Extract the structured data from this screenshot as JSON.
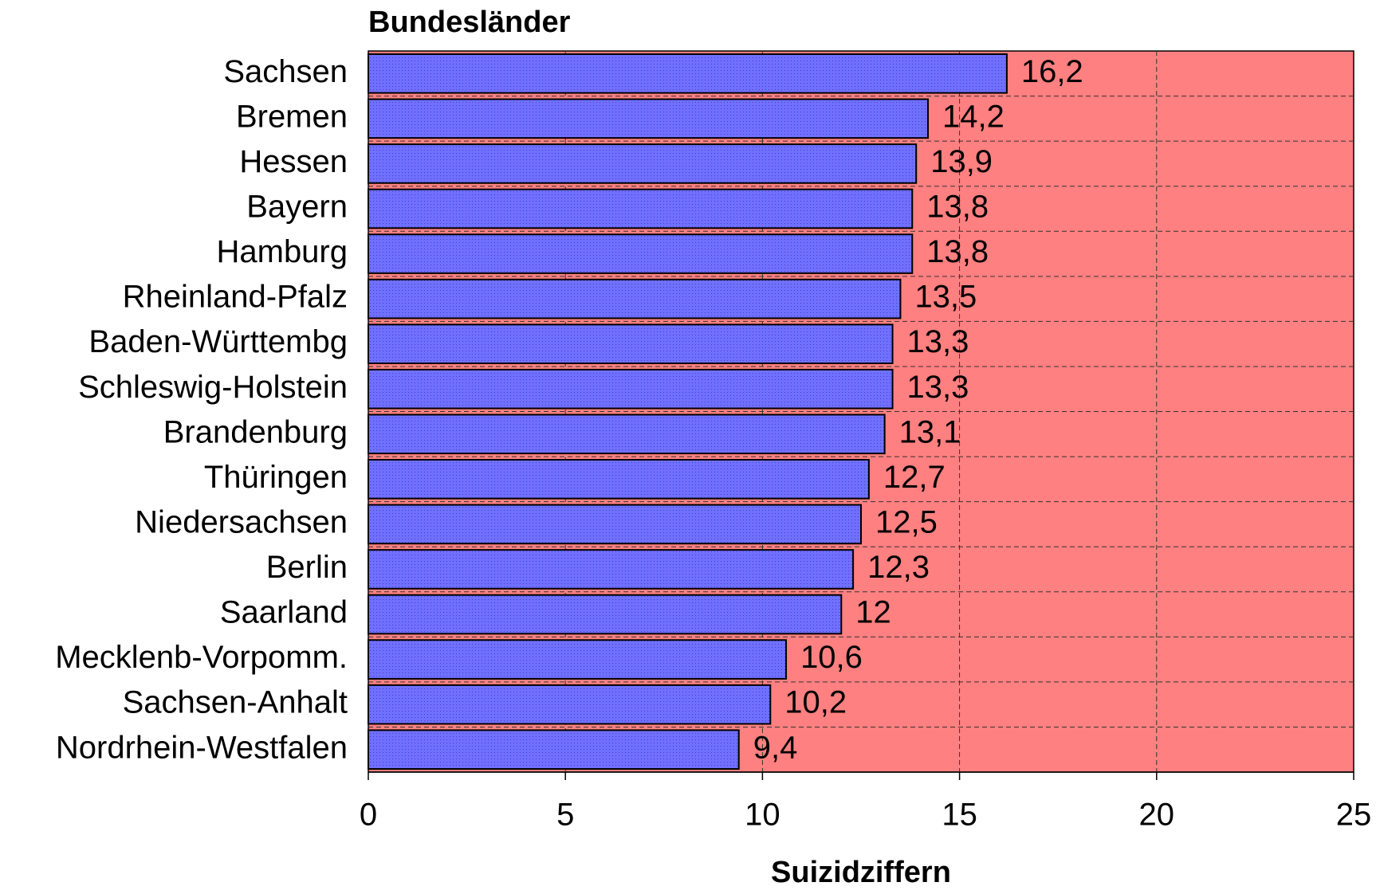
{
  "chart_data": {
    "type": "barh",
    "title": "Bundesländer",
    "xlabel": "Suizidziffern",
    "categories": [
      "Sachsen",
      "Bremen",
      "Hessen",
      "Bayern",
      "Hamburg",
      "Rheinland-Pfalz",
      "Baden-Württembg",
      "Schleswig-Holstein",
      "Brandenburg",
      "Thüringen",
      "Niedersachsen",
      "Berlin",
      "Saarland",
      "Mecklenb-Vorpomm.",
      "Sachsen-Anhalt",
      "Nordrhein-Westfalen"
    ],
    "values": [
      16.2,
      14.2,
      13.9,
      13.8,
      13.8,
      13.5,
      13.3,
      13.3,
      13.1,
      12.7,
      12.5,
      12.3,
      12,
      10.6,
      10.2,
      9.4
    ],
    "value_labels": [
      "16,2",
      "14,2",
      "13,9",
      "13,8",
      "13,8",
      "13,5",
      "13,3",
      "13,3",
      "13,1",
      "12,7",
      "12,5",
      "12,3",
      "12",
      "10,6",
      "10,2",
      "9,4"
    ],
    "color": "#6f6ff5",
    "background": "#ff8080",
    "xlim": [
      0,
      25
    ],
    "xticks": [
      0,
      5,
      10,
      15,
      20,
      25
    ],
    "grid": true
  }
}
